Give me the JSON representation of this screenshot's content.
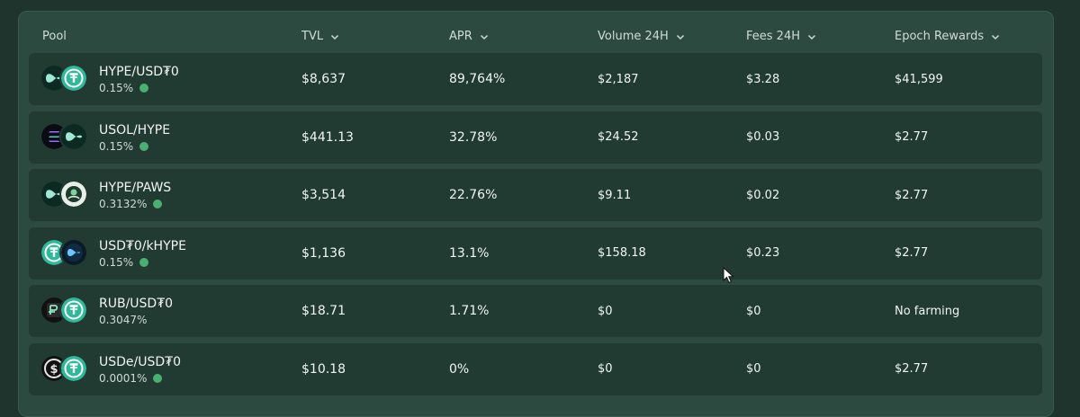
{
  "header": {
    "pool": "Pool",
    "tvl": "TVL",
    "apr": "APR",
    "volume": "Volume 24H",
    "fees": "Fees 24H",
    "epoch": "Epoch Rewards"
  },
  "colors": {
    "background": "#1f342c",
    "panel": "#2c4a40",
    "row": "#213a32",
    "status_dot": "#4caf72",
    "usdt_coin": "#2fb89a",
    "hype_coin": "#9fe8d4"
  },
  "rows": [
    {
      "pair": "HYPE/USD₮0",
      "fee": "0.15%",
      "active": true,
      "icons": [
        "hype-icon",
        "usdt0-icon"
      ],
      "tvl": "$8,637",
      "apr": "89,764%",
      "volume": "$2,187",
      "fees": "$3.28",
      "epoch": "$41,599"
    },
    {
      "pair": "USOL/HYPE",
      "fee": "0.15%",
      "active": true,
      "icons": [
        "usol-icon",
        "hype-icon"
      ],
      "tvl": "$441.13",
      "apr": "32.78%",
      "volume": "$24.52",
      "fees": "$0.03",
      "epoch": "$2.77"
    },
    {
      "pair": "HYPE/PAWS",
      "fee": "0.3132%",
      "active": true,
      "icons": [
        "hype-icon",
        "paws-icon"
      ],
      "tvl": "$3,514",
      "apr": "22.76%",
      "volume": "$9.11",
      "fees": "$0.02",
      "epoch": "$2.77"
    },
    {
      "pair": "USD₮0/kHYPE",
      "fee": "0.15%",
      "active": true,
      "icons": [
        "usdt0-icon",
        "khype-icon"
      ],
      "tvl": "$1,136",
      "apr": "13.1%",
      "volume": "$158.18",
      "fees": "$0.23",
      "epoch": "$2.77"
    },
    {
      "pair": "RUB/USD₮0",
      "fee": "0.3047%",
      "active": false,
      "icons": [
        "rub-icon",
        "usdt0-icon"
      ],
      "tvl": "$18.71",
      "apr": "1.71%",
      "volume": "$0",
      "fees": "$0",
      "epoch": "No farming"
    },
    {
      "pair": "USDe/USD₮0",
      "fee": "0.0001%",
      "active": true,
      "icons": [
        "usde-icon",
        "usdt0-icon"
      ],
      "tvl": "$10.18",
      "apr": "0%",
      "volume": "$0",
      "fees": "$0",
      "epoch": "$2.77"
    }
  ]
}
